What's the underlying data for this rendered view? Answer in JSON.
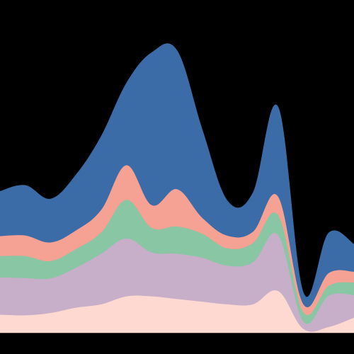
{
  "chart_data": {
    "type": "area",
    "stacked": true,
    "smooth": true,
    "axes_visible": false,
    "grid": false,
    "legend": "none",
    "background": "#000000",
    "x": [
      0,
      1,
      2,
      3,
      4,
      5,
      6,
      7,
      8,
      9,
      10,
      11,
      12,
      13,
      14
    ],
    "ylim": [
      0,
      100
    ],
    "series": [
      {
        "color": "#fdd9d2",
        "values": [
          5.5,
          5.3,
          6.0,
          7.6,
          8.6,
          11.0,
          11.0,
          10.2,
          9.4,
          8.6,
          8.6,
          12.6,
          1.2,
          1.8,
          4.6
        ]
      },
      {
        "color": "#c8afc9",
        "values": [
          11.2,
          11.2,
          10.4,
          12.0,
          15.2,
          17.4,
          13.2,
          13.6,
          13.2,
          11.6,
          12.6,
          16.8,
          2.2,
          9.4,
          6.8
        ]
      },
      {
        "color": "#89c6a4",
        "values": [
          6.4,
          6.6,
          5.2,
          5.6,
          6.4,
          11.6,
          7.4,
          8.2,
          7.2,
          5.2,
          5.8,
          6.0,
          2.8,
          3.0,
          3.8
        ]
      },
      {
        "color": "#f5a193",
        "values": [
          6.0,
          6.2,
          5.6,
          5.6,
          6.8,
          10.4,
          6.8,
          11.2,
          4.8,
          3.8,
          3.4,
          5.6,
          2.4,
          3.8,
          3.2
        ]
      },
      {
        "color": "#3c6ca8",
        "values": [
          13.4,
          15.0,
          13.0,
          16.6,
          22.0,
          24.6,
          45.8,
          41.6,
          26.4,
          10.4,
          11.6,
          26.8,
          3.4,
          12.0,
          8.2
        ]
      }
    ]
  }
}
